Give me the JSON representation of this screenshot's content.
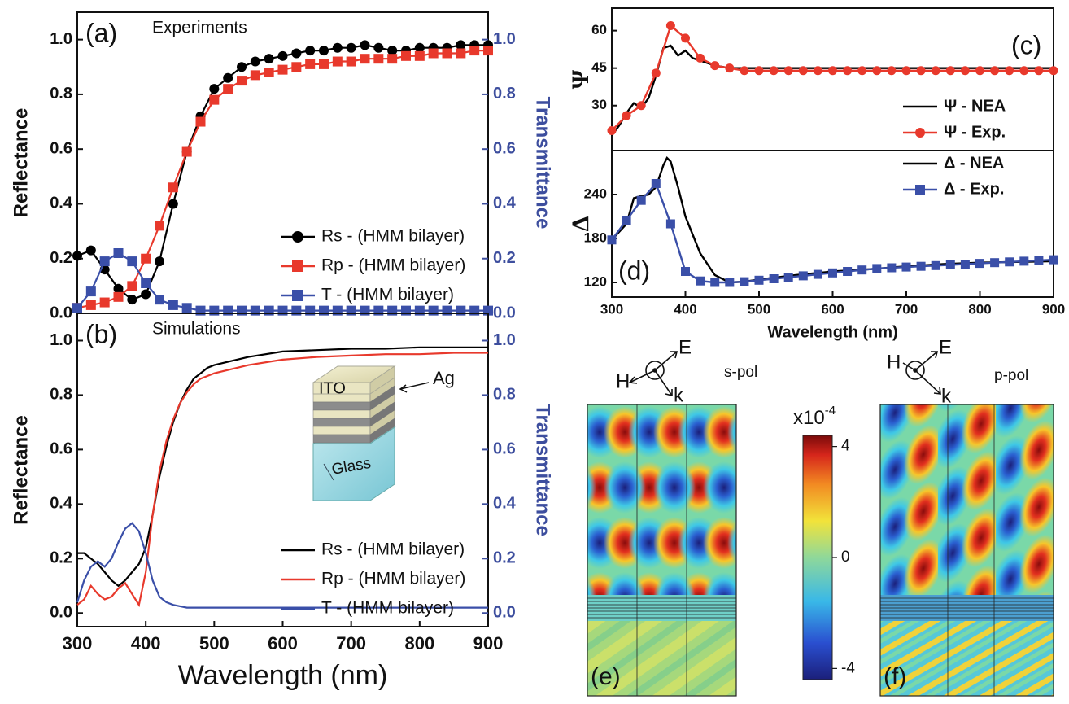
{
  "chart_data": [
    {
      "type": "line",
      "panel": "(a)",
      "title": "Experiments",
      "ylabel": "Reflectance",
      "y2label": "Transmittance",
      "x": [
        300,
        320,
        340,
        360,
        380,
        400,
        420,
        440,
        460,
        480,
        500,
        520,
        540,
        560,
        580,
        600,
        620,
        640,
        660,
        680,
        700,
        720,
        740,
        760,
        780,
        800,
        820,
        840,
        860,
        880,
        900
      ],
      "xlim": [
        300,
        900
      ],
      "ylim": [
        0,
        1.1
      ],
      "y2lim": [
        0,
        1.1
      ],
      "yticks": [
        {
          "value": 0,
          "label": "0.0"
        },
        0.2,
        0.4,
        0.6,
        0.8,
        {
          "value": 1,
          "label": "1.0"
        }
      ],
      "y2ticks": [
        {
          "value": 0,
          "label": "0.0"
        },
        0.2,
        0.4,
        0.6,
        0.8,
        {
          "value": 1,
          "label": "1.0"
        }
      ],
      "legend": "lower right",
      "series": [
        {
          "name": "Rs - (HMM bilayer)",
          "color": "#000000",
          "marker": "circle",
          "values": [
            0.21,
            0.23,
            0.16,
            0.09,
            0.05,
            0.07,
            0.19,
            0.4,
            0.59,
            0.72,
            0.82,
            0.86,
            0.9,
            0.92,
            0.93,
            0.94,
            0.95,
            0.96,
            0.96,
            0.97,
            0.97,
            0.98,
            0.97,
            0.96,
            0.96,
            0.97,
            0.97,
            0.97,
            0.98,
            0.98,
            0.98
          ]
        },
        {
          "name": "Rp - (HMM bilayer)",
          "color": "#e8392c",
          "marker": "square",
          "values": [
            0.02,
            0.03,
            0.04,
            0.06,
            0.1,
            0.2,
            0.32,
            0.46,
            0.59,
            0.7,
            0.78,
            0.82,
            0.85,
            0.87,
            0.88,
            0.89,
            0.9,
            0.91,
            0.91,
            0.92,
            0.92,
            0.93,
            0.93,
            0.93,
            0.94,
            0.94,
            0.95,
            0.95,
            0.95,
            0.96,
            0.96
          ]
        },
        {
          "name": "T - (HMM bilayer)",
          "color": "#3a4fa8",
          "marker": "square",
          "axis": "y2",
          "values": [
            0.02,
            0.08,
            0.19,
            0.22,
            0.19,
            0.11,
            0.05,
            0.03,
            0.02,
            0.01,
            0.01,
            0.01,
            0.01,
            0.01,
            0.01,
            0.01,
            0.01,
            0.01,
            0.01,
            0.01,
            0.01,
            0.01,
            0.01,
            0.01,
            0.01,
            0.01,
            0.01,
            0.01,
            0.01,
            0.01,
            0.01
          ]
        }
      ]
    },
    {
      "type": "line",
      "panel": "(b)",
      "title": "Simulations",
      "ylabel": "Reflectance",
      "y2label": "Transmittance",
      "xlabel": "Wavelength (nm)",
      "x": [
        300,
        310,
        320,
        330,
        340,
        350,
        360,
        370,
        380,
        390,
        400,
        410,
        420,
        430,
        440,
        450,
        460,
        470,
        480,
        490,
        500,
        550,
        600,
        650,
        700,
        750,
        800,
        850,
        900
      ],
      "xlim": [
        300,
        900
      ],
      "ylim": [
        -0.05,
        1.1
      ],
      "y2lim": [
        -0.05,
        1.1
      ],
      "xticks": [
        300,
        400,
        500,
        600,
        700,
        800,
        900
      ],
      "yticks": [
        {
          "value": 0,
          "label": "0.0"
        },
        0.2,
        0.4,
        0.6,
        0.8,
        {
          "value": 1,
          "label": "1.0"
        }
      ],
      "y2ticks": [
        {
          "value": 0,
          "label": "0.0"
        },
        0.2,
        0.4,
        0.6,
        0.8,
        {
          "value": 1,
          "label": "1.0"
        }
      ],
      "legend": "lower right",
      "annotations": [
        "ITO",
        "Ag",
        "Glass"
      ],
      "series": [
        {
          "name": "Rs - (HMM bilayer)",
          "color": "#000000",
          "values": [
            0.22,
            0.22,
            0.2,
            0.18,
            0.15,
            0.12,
            0.1,
            0.12,
            0.15,
            0.18,
            0.24,
            0.36,
            0.5,
            0.61,
            0.7,
            0.77,
            0.82,
            0.86,
            0.88,
            0.9,
            0.91,
            0.94,
            0.96,
            0.965,
            0.97,
            0.97,
            0.975,
            0.975,
            0.975
          ]
        },
        {
          "name": "Rp - (HMM bilayer)",
          "color": "#e8392c",
          "values": [
            0.03,
            0.05,
            0.1,
            0.07,
            0.05,
            0.06,
            0.09,
            0.11,
            0.07,
            0.03,
            0.15,
            0.36,
            0.52,
            0.63,
            0.71,
            0.77,
            0.81,
            0.84,
            0.86,
            0.87,
            0.88,
            0.91,
            0.93,
            0.94,
            0.945,
            0.95,
            0.95,
            0.955,
            0.955
          ]
        },
        {
          "name": "T  - (HMM bilayer)",
          "color": "#3a4fa8",
          "axis": "y2",
          "values": [
            0.04,
            0.12,
            0.17,
            0.19,
            0.17,
            0.2,
            0.26,
            0.31,
            0.33,
            0.3,
            0.22,
            0.12,
            0.06,
            0.04,
            0.03,
            0.025,
            0.02,
            0.02,
            0.02,
            0.02,
            0.02,
            0.02,
            0.02,
            0.02,
            0.02,
            0.02,
            0.02,
            0.02,
            0.02
          ]
        }
      ]
    },
    {
      "type": "line",
      "panel": "(c)",
      "ylabel": "Ψ",
      "xlim": [
        300,
        900
      ],
      "ylim": [
        12,
        69
      ],
      "yticks": [
        30,
        45,
        60
      ],
      "legend": "lower right",
      "series": [
        {
          "name": "Ψ - NEA",
          "color": "#000000",
          "x": [
            300,
            310,
            320,
            330,
            340,
            350,
            360,
            370,
            380,
            390,
            400,
            410,
            420,
            430,
            440,
            450,
            460,
            500,
            600,
            700,
            800,
            900
          ],
          "values": [
            18,
            22,
            27,
            31,
            29,
            33,
            42,
            53,
            54,
            50,
            52,
            49,
            48,
            47,
            46,
            45.5,
            45,
            45,
            45,
            45,
            45,
            45
          ]
        },
        {
          "name": "Ψ - Exp.",
          "color": "#e8392c",
          "marker": "circle",
          "x": [
            300,
            320,
            340,
            360,
            380,
            400,
            420,
            440,
            460,
            480,
            500,
            520,
            540,
            560,
            580,
            600,
            620,
            640,
            660,
            680,
            700,
            720,
            740,
            760,
            780,
            800,
            820,
            840,
            860,
            880,
            900
          ],
          "values": [
            20,
            26,
            30,
            43,
            62,
            57,
            49,
            46,
            45,
            44,
            44,
            44,
            44,
            44,
            44,
            44,
            44,
            44,
            44,
            44,
            44,
            44,
            44,
            44,
            44,
            44,
            44,
            44,
            44,
            44,
            44
          ]
        }
      ]
    },
    {
      "type": "line",
      "panel": "(d)",
      "ylabel": "Δ",
      "xlabel": "Wavelength (nm)",
      "xlim": [
        300,
        900
      ],
      "ylim": [
        100,
        300
      ],
      "xticks": [
        300,
        400,
        500,
        600,
        700,
        800,
        900
      ],
      "yticks": [
        120,
        180,
        240
      ],
      "legend": "upper right",
      "series": [
        {
          "name": "Δ - NEA",
          "color": "#000000",
          "x": [
            300,
            320,
            330,
            340,
            350,
            360,
            370,
            375,
            380,
            390,
            400,
            420,
            440,
            460,
            480,
            500,
            550,
            600,
            650,
            700,
            750,
            800,
            850,
            900
          ],
          "values": [
            178,
            200,
            235,
            238,
            240,
            250,
            280,
            290,
            285,
            250,
            210,
            160,
            130,
            120,
            121,
            124,
            130,
            135,
            138,
            142,
            145,
            147,
            148,
            149
          ]
        },
        {
          "name": "Δ - Exp.",
          "color": "#3a4fa8",
          "marker": "square",
          "x": [
            300,
            320,
            340,
            360,
            380,
            400,
            420,
            440,
            460,
            480,
            500,
            520,
            540,
            560,
            580,
            600,
            620,
            640,
            660,
            680,
            700,
            720,
            740,
            760,
            780,
            800,
            820,
            840,
            860,
            880,
            900
          ],
          "values": [
            178,
            205,
            232,
            255,
            200,
            135,
            122,
            120,
            120,
            121,
            123,
            125,
            127,
            129,
            131,
            133,
            135,
            137,
            139,
            140,
            141,
            142,
            143,
            144,
            145,
            146,
            147,
            148,
            149,
            150,
            151
          ]
        }
      ]
    }
  ],
  "field_maps": {
    "panels": [
      {
        "label": "(e)",
        "polarization": "s-pol",
        "vectors": [
          "H",
          "E",
          "k"
        ]
      },
      {
        "label": "(f)",
        "polarization": "p-pol",
        "vectors": [
          "H",
          "E",
          "k"
        ]
      }
    ],
    "colorbar": {
      "base": "x10",
      "exponent": "-4",
      "lim": [
        -4.4,
        4.4
      ],
      "ticks": [
        4,
        0,
        -4
      ]
    }
  }
}
